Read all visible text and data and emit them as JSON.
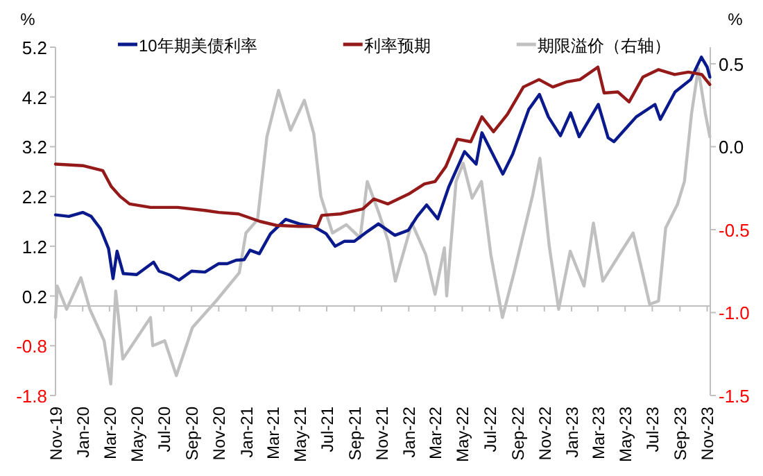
{
  "chart_data": {
    "type": "line",
    "ylabel": "%",
    "y2label": "%",
    "legend": "top",
    "xlim": [
      "2019-11-01",
      "2023-11-08"
    ],
    "xticks": [
      {
        "value": "2019-11-01",
        "label": "Nov-19"
      },
      {
        "value": "2020-01-01",
        "label": "Jan-20"
      },
      {
        "value": "2020-03-01",
        "label": "Mar-20"
      },
      {
        "value": "2020-05-01",
        "label": "May-20"
      },
      {
        "value": "2020-07-01",
        "label": "Jul-20"
      },
      {
        "value": "2020-09-01",
        "label": "Sep-20"
      },
      {
        "value": "2020-11-01",
        "label": "Nov-20"
      },
      {
        "value": "2021-01-01",
        "label": "Jan-21"
      },
      {
        "value": "2021-03-01",
        "label": "Mar-21"
      },
      {
        "value": "2021-05-01",
        "label": "May-21"
      },
      {
        "value": "2021-07-01",
        "label": "Jul-21"
      },
      {
        "value": "2021-09-01",
        "label": "Sep-21"
      },
      {
        "value": "2021-11-01",
        "label": "Nov-21"
      },
      {
        "value": "2022-01-01",
        "label": "Jan-22"
      },
      {
        "value": "2022-03-01",
        "label": "Mar-22"
      },
      {
        "value": "2022-05-01",
        "label": "May-22"
      },
      {
        "value": "2022-07-01",
        "label": "Jul-22"
      },
      {
        "value": "2022-09-01",
        "label": "Sep-22"
      },
      {
        "value": "2022-11-01",
        "label": "Nov-22"
      },
      {
        "value": "2023-01-01",
        "label": "Jan-23"
      },
      {
        "value": "2023-03-01",
        "label": "Mar-23"
      },
      {
        "value": "2023-05-01",
        "label": "May-23"
      },
      {
        "value": "2023-07-01",
        "label": "Jul-23"
      },
      {
        "value": "2023-09-01",
        "label": "Sep-23"
      },
      {
        "value": "2023-11-01",
        "label": "Nov-23"
      }
    ],
    "ylim": [
      -1.8,
      5.2
    ],
    "yticks": [
      {
        "value": 5.2,
        "label": "5.2"
      },
      {
        "value": 4.2,
        "label": "4.2"
      },
      {
        "value": 3.2,
        "label": "3.2"
      },
      {
        "value": 2.2,
        "label": "2.2"
      },
      {
        "value": 1.2,
        "label": "1.2"
      },
      {
        "value": 0.2,
        "label": "0.2"
      },
      {
        "value": -0.8,
        "label": "-0.8"
      },
      {
        "value": -1.8,
        "label": "-1.8"
      }
    ],
    "y2lim": [
      -1.5,
      0.6
    ],
    "y2ticks": [
      {
        "value": 0.5,
        "label": "0.5"
      },
      {
        "value": 0,
        "label": "0.0"
      },
      {
        "value": -0.5,
        "label": "-0.5"
      },
      {
        "value": -1,
        "label": "-1.0"
      },
      {
        "value": -1.5,
        "label": "-1.5"
      }
    ],
    "ref_lines": [
      {
        "axis": "y",
        "value": 0,
        "color": "#bfbfbf"
      }
    ],
    "series": [
      {
        "name": "10年期美债利率",
        "color": "#0a1a8c",
        "x": [
          "2019-11-01",
          "2019-12-01",
          "2020-01-01",
          "2020-01-20",
          "2020-02-10",
          "2020-02-28",
          "2020-03-09",
          "2020-03-18",
          "2020-04-01",
          "2020-05-01",
          "2020-06-08",
          "2020-06-20",
          "2020-07-15",
          "2020-08-04",
          "2020-09-01",
          "2020-10-01",
          "2020-11-01",
          "2020-11-20",
          "2020-12-10",
          "2020-12-28",
          "2021-01-10",
          "2021-01-31",
          "2021-02-25",
          "2021-03-31",
          "2021-05-01",
          "2021-06-01",
          "2021-06-30",
          "2021-07-20",
          "2021-08-10",
          "2021-09-01",
          "2021-10-01",
          "2021-10-25",
          "2021-12-01",
          "2021-12-31",
          "2022-01-20",
          "2022-02-10",
          "2022-03-07",
          "2022-04-01",
          "2022-05-06",
          "2022-06-01",
          "2022-06-14",
          "2022-07-31",
          "2022-08-22",
          "2022-09-27",
          "2022-10-21",
          "2022-11-10",
          "2022-12-07",
          "2022-12-30",
          "2023-01-18",
          "2023-03-02",
          "2023-03-24",
          "2023-04-06",
          "2023-05-01",
          "2023-05-26",
          "2023-07-07",
          "2023-07-19",
          "2023-08-21",
          "2023-09-25",
          "2023-10-19",
          "2023-11-01",
          "2023-11-07"
        ],
        "values": [
          1.83,
          1.8,
          1.88,
          1.8,
          1.55,
          1.15,
          0.55,
          1.1,
          0.65,
          0.63,
          0.88,
          0.7,
          0.62,
          0.52,
          0.7,
          0.68,
          0.85,
          0.85,
          0.92,
          0.93,
          1.12,
          1.05,
          1.45,
          1.74,
          1.65,
          1.6,
          1.45,
          1.2,
          1.3,
          1.3,
          1.5,
          1.65,
          1.42,
          1.52,
          1.8,
          2.03,
          1.75,
          2.4,
          3.1,
          2.85,
          3.48,
          2.65,
          3.05,
          3.95,
          4.25,
          3.8,
          3.42,
          3.88,
          3.4,
          4.05,
          3.38,
          3.3,
          3.55,
          3.8,
          4.05,
          3.75,
          4.3,
          4.55,
          5.0,
          4.8,
          4.6
        ]
      },
      {
        "name": "利率预期",
        "color": "#941a1a",
        "x": [
          "2019-11-01",
          "2020-01-01",
          "2020-02-15",
          "2020-03-05",
          "2020-03-25",
          "2020-04-15",
          "2020-06-01",
          "2020-08-01",
          "2020-10-01",
          "2020-11-01",
          "2020-12-15",
          "2021-02-01",
          "2021-03-10",
          "2021-05-01",
          "2021-06-10",
          "2021-06-20",
          "2021-08-01",
          "2021-09-20",
          "2021-10-15",
          "2021-11-15",
          "2022-01-01",
          "2022-02-05",
          "2022-03-01",
          "2022-03-25",
          "2022-04-20",
          "2022-05-20",
          "2022-06-14",
          "2022-07-10",
          "2022-08-10",
          "2022-09-15",
          "2022-10-20",
          "2022-11-20",
          "2022-12-20",
          "2023-01-20",
          "2023-03-01",
          "2023-03-15",
          "2023-04-15",
          "2023-05-10",
          "2023-06-10",
          "2023-07-15",
          "2023-08-20",
          "2023-09-20",
          "2023-10-20",
          "2023-11-07"
        ],
        "values": [
          2.85,
          2.82,
          2.72,
          2.4,
          2.2,
          2.05,
          1.98,
          1.98,
          1.92,
          1.88,
          1.85,
          1.7,
          1.62,
          1.6,
          1.6,
          1.82,
          1.85,
          1.95,
          2.15,
          2.05,
          2.25,
          2.45,
          2.5,
          2.8,
          3.35,
          3.3,
          3.8,
          3.5,
          3.85,
          4.4,
          4.55,
          4.4,
          4.5,
          4.55,
          4.8,
          4.28,
          4.3,
          4.1,
          4.6,
          4.75,
          4.65,
          4.7,
          4.65,
          4.45
        ]
      },
      {
        "name": "期限溢价（右轴）",
        "color": "#c0c0c0",
        "axis": "y2",
        "x": [
          "2019-11-01",
          "2019-11-05",
          "2019-11-26",
          "2019-12-28",
          "2020-01-17",
          "2020-02-18",
          "2020-03-04",
          "2020-03-15",
          "2020-03-31",
          "2020-06-01",
          "2020-06-06",
          "2020-07-03",
          "2020-07-29",
          "2020-09-03",
          "2020-10-26",
          "2020-12-17",
          "2021-01-01",
          "2021-01-27",
          "2021-02-17",
          "2021-03-15",
          "2021-04-11",
          "2021-05-12",
          "2021-06-02",
          "2021-06-18",
          "2021-07-14",
          "2021-08-14",
          "2021-09-14",
          "2021-09-30",
          "2021-10-26",
          "2021-11-16",
          "2021-12-02",
          "2022-01-08",
          "2022-02-08",
          "2022-03-01",
          "2022-03-22",
          "2022-03-27",
          "2022-04-17",
          "2022-05-03",
          "2022-05-23",
          "2022-06-13",
          "2022-07-04",
          "2022-07-30",
          "2022-08-25",
          "2022-10-06",
          "2022-10-22",
          "2022-11-12",
          "2022-12-03",
          "2022-12-29",
          "2023-01-29",
          "2023-02-19",
          "2023-03-12",
          "2023-04-23",
          "2023-05-19",
          "2023-06-09",
          "2023-06-25",
          "2023-07-15",
          "2023-07-31",
          "2023-08-26",
          "2023-09-11",
          "2023-09-27",
          "2023-10-12",
          "2023-10-28",
          "2023-11-07"
        ],
        "values": [
          -1.03,
          -0.84,
          -0.98,
          -0.79,
          -0.98,
          -1.17,
          -1.43,
          -0.87,
          -1.28,
          -1.03,
          -1.2,
          -1.17,
          -1.38,
          -1.09,
          -0.93,
          -0.76,
          -0.52,
          -0.44,
          0.06,
          0.34,
          0.1,
          0.28,
          0.08,
          -0.3,
          -0.52,
          -0.47,
          -0.55,
          -0.21,
          -0.4,
          -0.57,
          -0.81,
          -0.46,
          -0.65,
          -0.89,
          -0.61,
          -0.9,
          -0.21,
          -0.1,
          -0.31,
          -0.21,
          -0.65,
          -1.03,
          -0.76,
          -0.29,
          -0.07,
          -0.6,
          -0.98,
          -0.63,
          -0.84,
          -0.46,
          -0.81,
          -0.63,
          -0.52,
          -0.76,
          -0.95,
          -0.93,
          -0.49,
          -0.35,
          -0.21,
          0.2,
          0.47,
          0.2,
          0.06
        ]
      }
    ]
  }
}
